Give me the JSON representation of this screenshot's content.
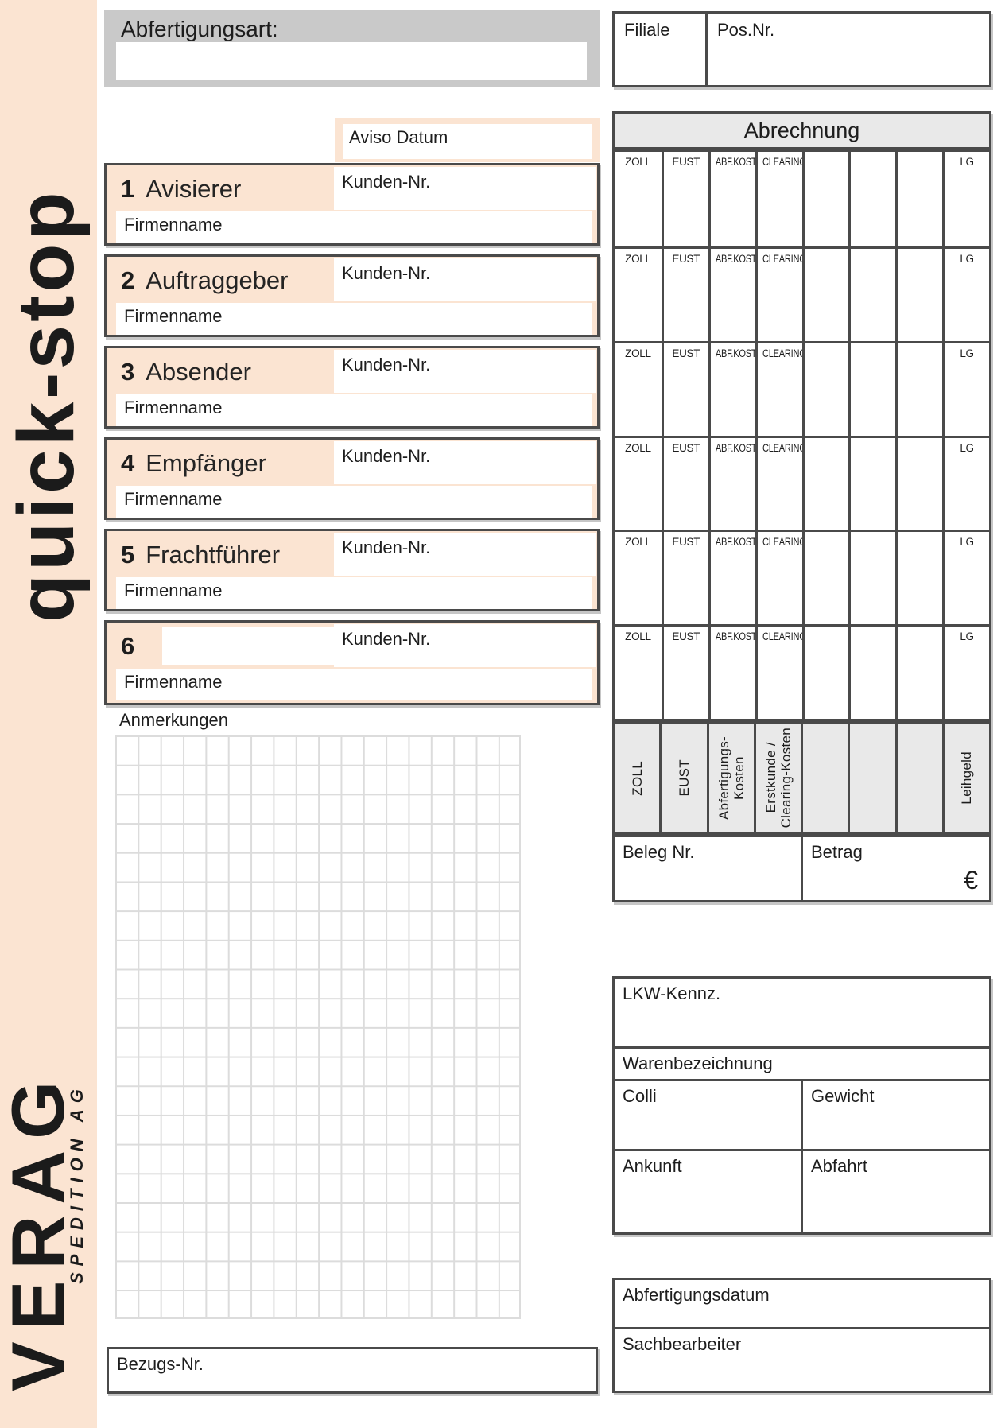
{
  "colors": {
    "peach": "#fbe4d2",
    "border_gray": "#4a4a4a",
    "panel_gray": "#c9c9c9",
    "light_gray": "#e9e9e9",
    "grid_line": "#dcdcdc",
    "ink": "#1d1d1d"
  },
  "brand": {
    "product": "quick-stop",
    "company": "VERAG",
    "company_sub": "SPEDITION AG"
  },
  "header": {
    "abfertigungsart_label": "Abfertigungsart:",
    "filiale_label": "Filiale",
    "pos_nr_label": "Pos.Nr.",
    "aviso_label": "Aviso Datum"
  },
  "abrechnung": {
    "title": "Abrechnung",
    "columns": [
      "ZOLL",
      "EUST",
      "ABF.KOST.",
      "CLEARING",
      "",
      "",
      "",
      "LG"
    ],
    "rows": 6,
    "vertical_labels": [
      "ZOLL",
      "EUST",
      "Abfertigungs-\nKosten",
      "Erstkunde /\nClearing-Kosten",
      "",
      "",
      "",
      "Leihgeld"
    ],
    "beleg_label": "Beleg Nr.",
    "betrag_label": "Betrag",
    "currency_symbol": "€"
  },
  "parties": {
    "kunden_nr_label": "Kunden-Nr.",
    "firmenname_label": "Firmenname",
    "rows": [
      {
        "num": "1",
        "label": "Avisierer"
      },
      {
        "num": "2",
        "label": "Auftraggeber"
      },
      {
        "num": "3",
        "label": "Absender"
      },
      {
        "num": "4",
        "label": "Empfänger"
      },
      {
        "num": "5",
        "label": "Frachtführer"
      },
      {
        "num": "6",
        "label": ""
      }
    ]
  },
  "anmerkungen_label": "Anmerkungen",
  "shipment": {
    "lkw_label": "LKW-Kennz.",
    "waren_label": "Warenbezeichnung",
    "colli_label": "Colli",
    "gewicht_label": "Gewicht",
    "ankunft_label": "Ankunft",
    "abfahrt_label": "Abfahrt"
  },
  "processing": {
    "abfertigungsdatum_label": "Abfertigungsdatum",
    "sachbearbeiter_label": "Sachbearbeiter"
  },
  "bezugs_label": "Bezugs-Nr."
}
